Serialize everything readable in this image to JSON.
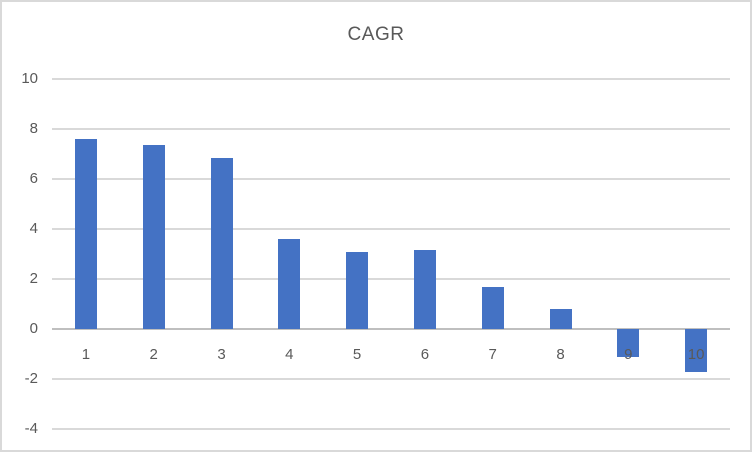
{
  "window": {
    "background": "#ffffff",
    "border_color": "#d9d9d9"
  },
  "chart_data": {
    "type": "bar",
    "title": "CAGR",
    "categories": [
      "1",
      "2",
      "3",
      "4",
      "5",
      "6",
      "7",
      "8",
      "9",
      "10"
    ],
    "values": [
      7.6,
      7.35,
      6.85,
      3.6,
      3.1,
      3.15,
      1.7,
      0.8,
      -1.1,
      -1.7
    ],
    "xlabel": "",
    "ylabel": "",
    "ylim": [
      -4,
      10
    ],
    "yticks": [
      10,
      8,
      6,
      4,
      2,
      0,
      -2,
      -4
    ],
    "grid": true,
    "legend_position": "none",
    "bar_color": "#4472c4",
    "gridline_color": "#d9d9d9",
    "axis_line_color": "#bfbfbf",
    "text_color": "#595959"
  }
}
